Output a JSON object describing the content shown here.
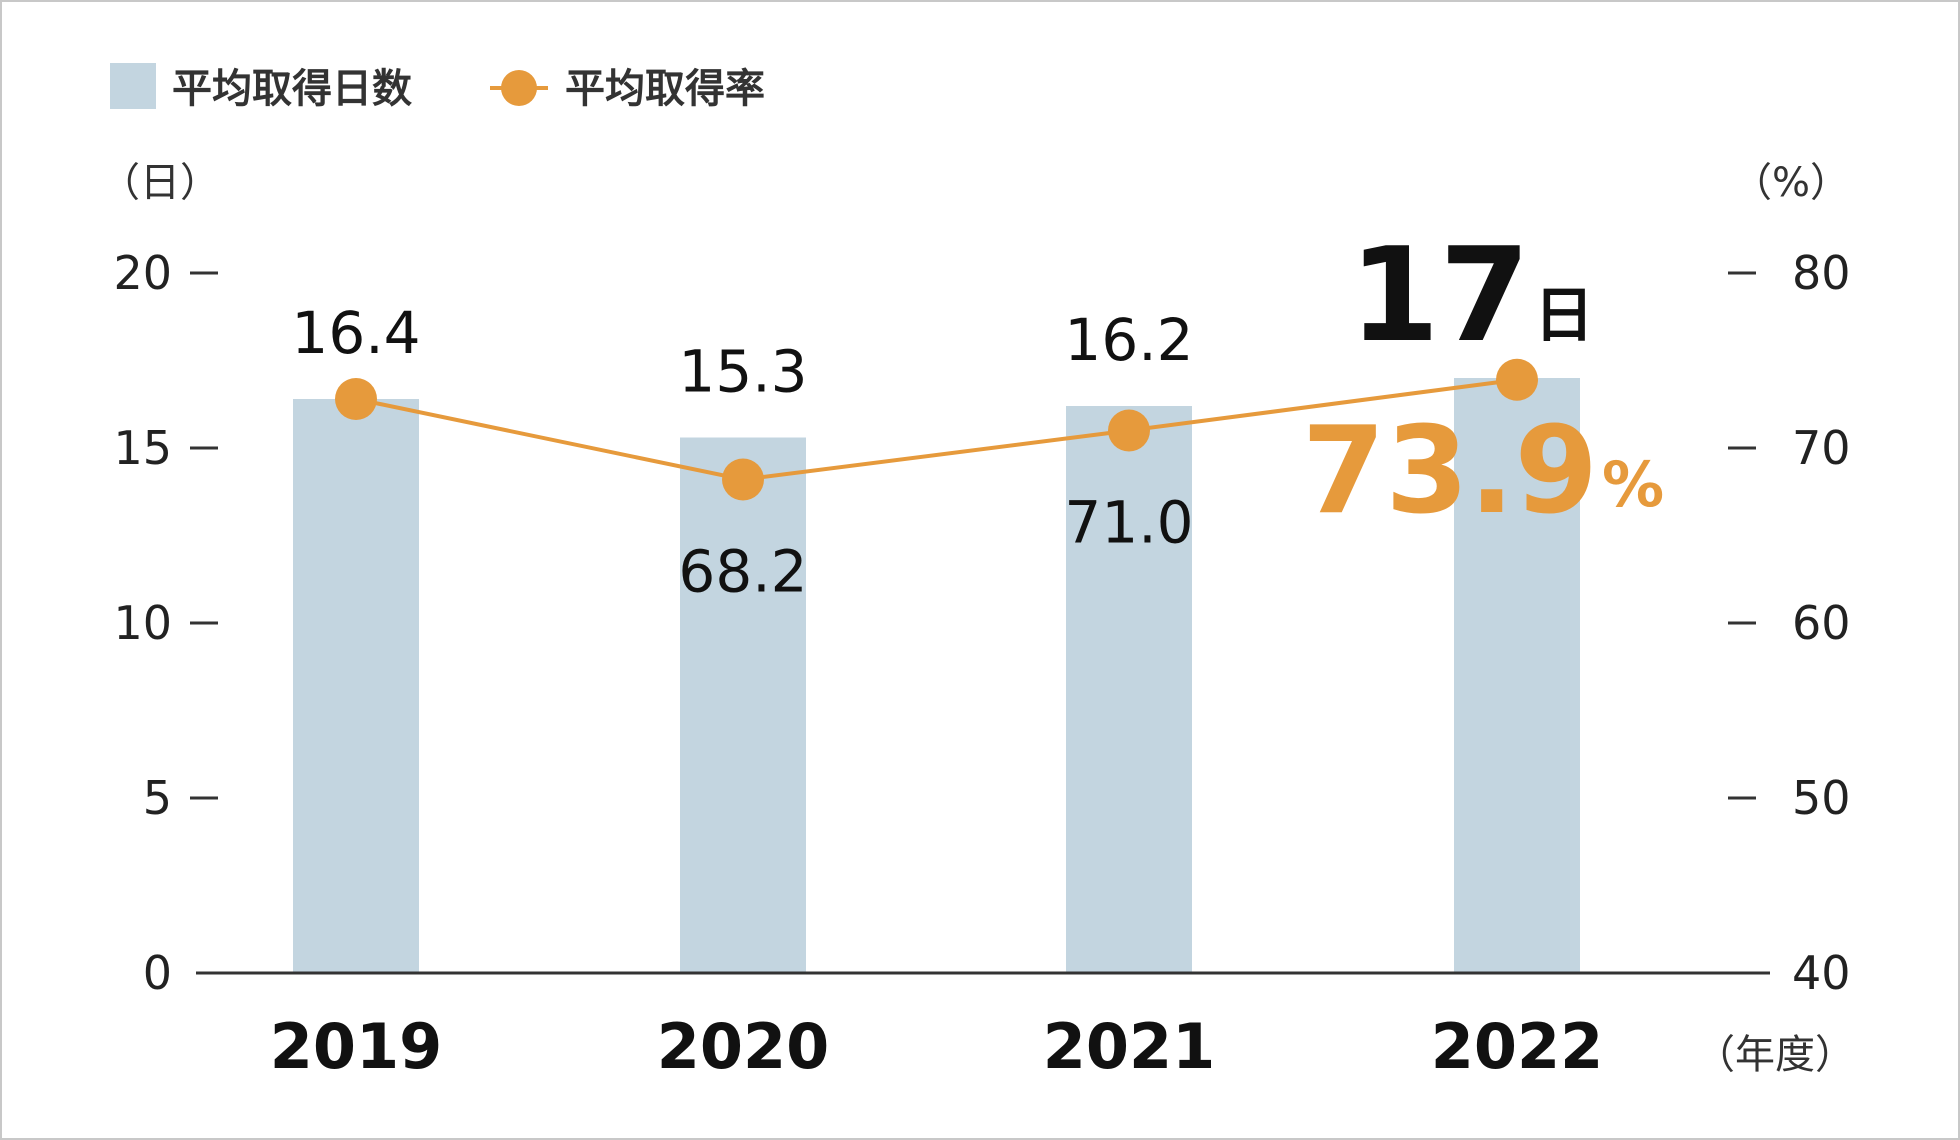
{
  "chart_data": {
    "type": "bar",
    "categories": [
      "2019",
      "2020",
      "2021",
      "2022"
    ],
    "series": [
      {
        "name": "平均取得日数",
        "type": "bar",
        "axis": "left",
        "values": [
          16.4,
          15.3,
          16.2,
          17
        ],
        "color": "#c3d5e0"
      },
      {
        "name": "平均取得率",
        "type": "line",
        "axis": "right",
        "values": [
          72.8,
          68.2,
          71.0,
          73.9
        ],
        "color": "#e69a3c"
      }
    ],
    "bar_labels": [
      "16.4",
      "15.3",
      "16.2"
    ],
    "line_labels": [
      "68.2",
      "71.0"
    ],
    "highlight": {
      "days_value": "17",
      "days_unit": "日",
      "rate_value": "73.9",
      "rate_unit": "%"
    },
    "left_axis": {
      "unit": "（日）",
      "ticks": [
        "0",
        "5",
        "10",
        "15",
        "20"
      ],
      "ylim": [
        0,
        20
      ]
    },
    "right_axis": {
      "unit": "（%）",
      "ticks": [
        "40",
        "50",
        "60",
        "70",
        "80"
      ],
      "ylim": [
        40,
        80
      ]
    },
    "x_unit": "（年度）",
    "legend": {
      "placement": "top-left",
      "bar_label": "平均取得日数",
      "line_label": "平均取得率"
    },
    "grid": false
  }
}
